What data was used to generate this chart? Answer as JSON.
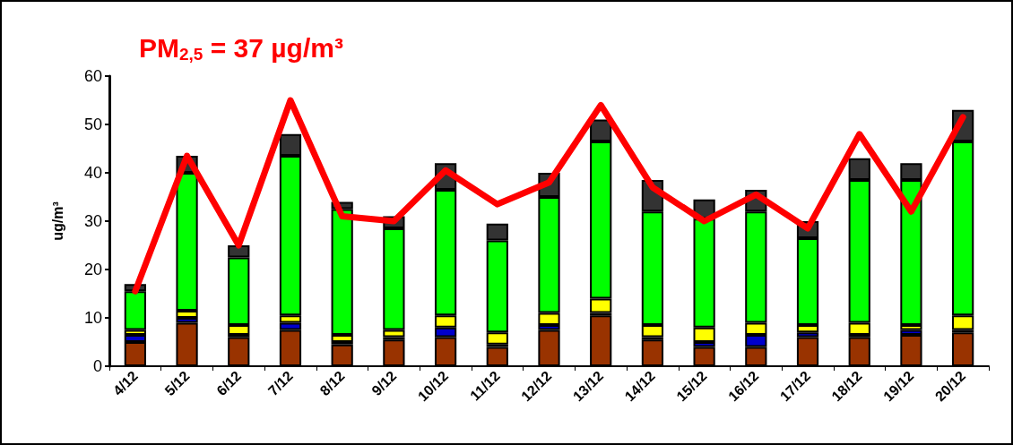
{
  "chart_data": {
    "type": "bar",
    "stacked": true,
    "title": "PM$_{2,5}$ = 37 µg/m³",
    "ylabel": "ug/m³",
    "categories": [
      "4/12",
      "5/12",
      "6/12",
      "7/12",
      "8/12",
      "9/12",
      "10/12",
      "11/12",
      "12/12",
      "13/12",
      "14/12",
      "15/12",
      "16/12",
      "17/12",
      "18/12",
      "19/12",
      "20/12"
    ],
    "ylim": [
      0,
      60
    ],
    "yticks": [
      0,
      10,
      20,
      30,
      40,
      50,
      60
    ],
    "grid": false,
    "series": [
      {
        "color": "#993300",
        "values": [
          5,
          9,
          6,
          7.5,
          4.5,
          5.5,
          6,
          4,
          7.5,
          10.5,
          5.5,
          4,
          4,
          6,
          6,
          6.5,
          7
        ]
      },
      {
        "color": "#0000cc",
        "values": [
          1.5,
          1,
          0.5,
          1.5,
          0.5,
          0.5,
          2,
          0.5,
          1,
          0.5,
          0.5,
          1,
          2.5,
          1,
          0.5,
          1,
          0.5
        ]
      },
      {
        "color": "#ffff00",
        "values": [
          1,
          1.5,
          2,
          1.5,
          1.5,
          1.5,
          2.5,
          2.5,
          2.5,
          3,
          2.5,
          3,
          2.5,
          1.5,
          2.5,
          1,
          3
        ]
      },
      {
        "color": "#00ff00",
        "values": [
          8,
          28.5,
          14,
          33,
          26,
          21,
          26,
          19,
          24,
          32.5,
          23.5,
          22.5,
          23,
          18,
          29.5,
          30,
          36
        ]
      },
      {
        "color": "#333333",
        "values": [
          1.5,
          3.5,
          2.5,
          4.5,
          1.5,
          2.5,
          5.5,
          3.5,
          5,
          4.5,
          6.5,
          4,
          4.5,
          3.5,
          4.5,
          3.5,
          6.5
        ]
      },
      {
        "type": "line",
        "color": "#ff0000",
        "marker": "none",
        "line_style": "solid",
        "values": [
          15.5,
          43.5,
          25,
          55,
          31,
          30,
          40.5,
          33.5,
          38,
          54,
          37,
          30,
          35.5,
          28.5,
          48,
          32,
          51.5
        ]
      }
    ]
  }
}
